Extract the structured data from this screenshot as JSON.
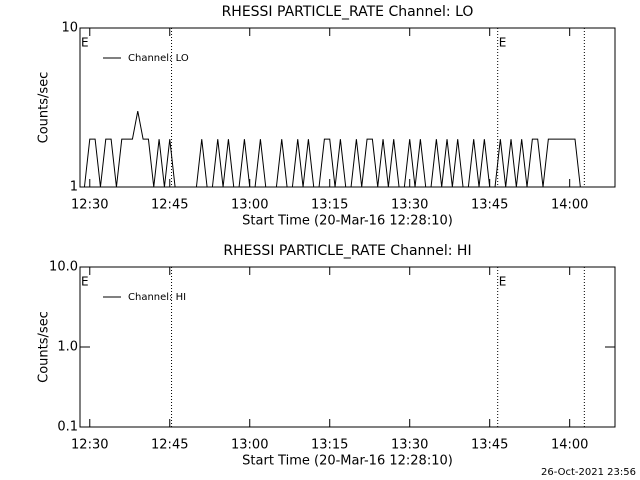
{
  "chart_data": [
    {
      "type": "line",
      "title": "RHESSI PARTICLE_RATE Channel: LO",
      "ylabel": "Counts/sec",
      "xlabel": "Start Time (20-Mar-16 12:28:10)",
      "log_y": true,
      "xlim": [
        "12:28:10",
        "14:08:30"
      ],
      "ylim": [
        1,
        10
      ],
      "yticks": [
        1,
        10
      ],
      "xticks": [
        "12:30",
        "12:45",
        "13:00",
        "13:15",
        "13:30",
        "13:45",
        "14:00"
      ],
      "vlines": [
        "12:45:20",
        "13:46:30",
        "14:02:45"
      ],
      "annotations": [
        {
          "x": "12:28:10",
          "label": "E"
        },
        {
          "x": "13:46:30",
          "label": "E"
        }
      ],
      "x": [
        "12:29",
        "12:30",
        "12:31",
        "12:32",
        "12:33",
        "12:34",
        "12:35",
        "12:36",
        "12:37",
        "12:38",
        "12:39",
        "12:40",
        "12:41",
        "12:42",
        "12:43",
        "12:44",
        "12:45",
        "12:46",
        "12:47",
        "12:48",
        "12:49",
        "12:50",
        "12:51",
        "12:52",
        "12:53",
        "12:54",
        "12:55",
        "12:56",
        "12:57",
        "12:58",
        "12:59",
        "13:00",
        "13:01",
        "13:02",
        "13:03",
        "13:04",
        "13:05",
        "13:06",
        "13:07",
        "13:08",
        "13:09",
        "13:10",
        "13:11",
        "13:12",
        "13:13",
        "13:14",
        "13:15",
        "13:16",
        "13:17",
        "13:18",
        "13:19",
        "13:20",
        "13:21",
        "13:22",
        "13:23",
        "13:24",
        "13:25",
        "13:26",
        "13:27",
        "13:28",
        "13:29",
        "13:30",
        "13:31",
        "13:32",
        "13:33",
        "13:34",
        "13:35",
        "13:36",
        "13:37",
        "13:38",
        "13:39",
        "13:40",
        "13:41",
        "13:42",
        "13:43",
        "13:44",
        "13:45",
        "13:46",
        "13:47",
        "13:48",
        "13:49",
        "13:50",
        "13:51",
        "13:52",
        "13:53",
        "13:54",
        "13:55",
        "13:56",
        "13:57",
        "13:58",
        "13:59",
        "14:00",
        "14:01",
        "14:02"
      ],
      "series": [
        {
          "name": "Channel: LO",
          "color": "#000000",
          "values": [
            1,
            2,
            2,
            1,
            2,
            2,
            1,
            2,
            2,
            2,
            3,
            2,
            2,
            1,
            2,
            1,
            2,
            1,
            1,
            1,
            1,
            1,
            2,
            1,
            1,
            2,
            1,
            2,
            1,
            1,
            2,
            1,
            1,
            2,
            1,
            1,
            1,
            2,
            1,
            1,
            2,
            1,
            2,
            1,
            1,
            2,
            2,
            1,
            2,
            1,
            1,
            2,
            1,
            2,
            2,
            1,
            2,
            1,
            2,
            1,
            1,
            2,
            1,
            2,
            1,
            1,
            2,
            1,
            2,
            1,
            2,
            1,
            1,
            2,
            1,
            2,
            1,
            1,
            2,
            1,
            2,
            1,
            2,
            1,
            2,
            2,
            1,
            2,
            2,
            2,
            2,
            2,
            2,
            1
          ]
        }
      ]
    },
    {
      "type": "line",
      "title": "RHESSI PARTICLE_RATE Channel: HI",
      "ylabel": "Counts/sec",
      "xlabel": "Start Time (20-Mar-16 12:28:10)",
      "log_y": true,
      "xlim": [
        "12:28:10",
        "14:08:30"
      ],
      "ylim": [
        0.1,
        10
      ],
      "yticks": [
        0.1,
        {
          "value": 1,
          "label": "1.0"
        },
        {
          "value": 10,
          "label": "10.0"
        }
      ],
      "xticks": [
        "12:30",
        "12:45",
        "13:00",
        "13:15",
        "13:30",
        "13:45",
        "14:00"
      ],
      "vlines": [
        "12:45:20",
        "13:46:30",
        "14:02:45"
      ],
      "annotations": [
        {
          "x": "12:28:10",
          "label": "E"
        },
        {
          "x": "13:46:30",
          "label": "E"
        }
      ],
      "x": [],
      "series": [
        {
          "name": "Channel: HI",
          "color": "#000000",
          "values": []
        }
      ]
    }
  ],
  "footer": "26-Oct-2021 23:56"
}
